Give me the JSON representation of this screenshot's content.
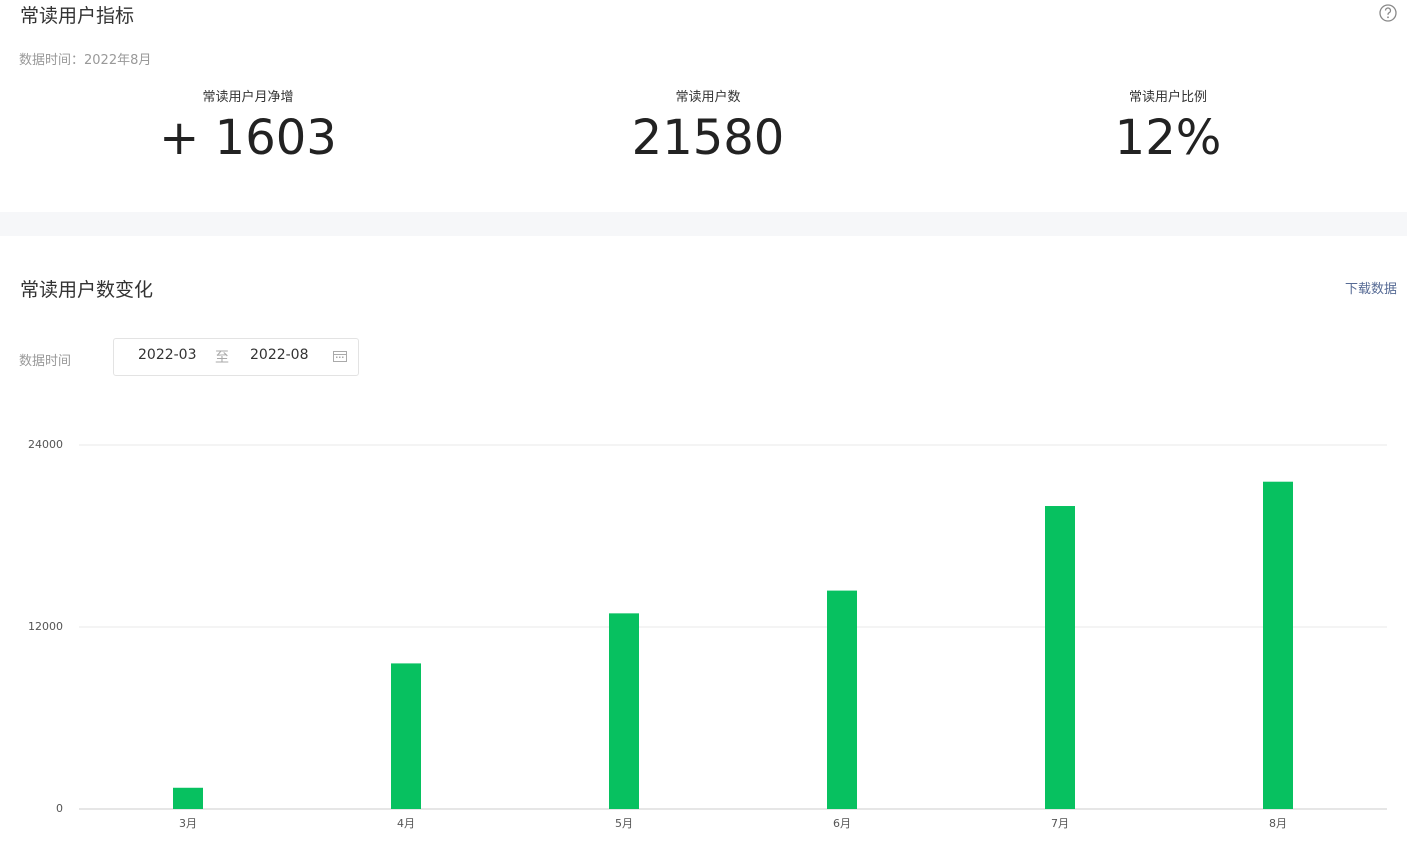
{
  "header": {
    "title": "常读用户指标",
    "data_time": "数据时间：2022年8月"
  },
  "metrics": [
    {
      "label": "常读用户月净增",
      "value": "+ 1603"
    },
    {
      "label": "常读用户数",
      "value": "21580"
    },
    {
      "label": "常读用户比例",
      "value": "12%"
    }
  ],
  "section": {
    "title": "常读用户数变化",
    "download": "下载数据",
    "filter_label": "数据时间",
    "start": "2022-03",
    "separator": "至",
    "end": "2022-08"
  },
  "chart_data": {
    "type": "bar",
    "categories": [
      "3月",
      "4月",
      "5月",
      "6月",
      "7月",
      "8月"
    ],
    "values": [
      1400,
      9600,
      12900,
      14400,
      19977,
      21580
    ],
    "color": "#07c160",
    "ylim": [
      0,
      24000
    ],
    "yticks": [
      0,
      12000,
      24000
    ],
    "grid": true
  }
}
